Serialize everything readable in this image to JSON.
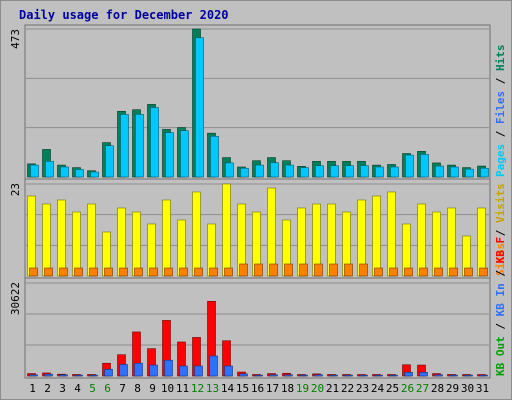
{
  "title": "Daily usage for December 2020",
  "colors": {
    "background": "#c0c0c0",
    "grid": "#8e8e8e",
    "panel_border": "#707070",
    "title": "#0000a0",
    "pages": "#00805a",
    "files": "#00c8ff",
    "hits": "#00805a",
    "visits": "#ffff00",
    "sites": "#ff8000",
    "kbin": "#3070ff",
    "kbout": "#00a000",
    "kbf": "#ff0000",
    "weekend_day": "#008000",
    "weekday_day": "#000000"
  },
  "chart_data": [
    {
      "type": "bar",
      "panel": "hits-files-pages",
      "categories": [
        "1",
        "2",
        "3",
        "4",
        "5",
        "6",
        "7",
        "8",
        "9",
        "10",
        "11",
        "12",
        "13",
        "14",
        "15",
        "16",
        "17",
        "18",
        "19",
        "20",
        "21",
        "22",
        "23",
        "24",
        "25",
        "26",
        "27",
        "28",
        "29",
        "30",
        "31"
      ],
      "weekend_days": [
        5,
        6,
        12,
        13,
        19,
        20,
        26,
        27
      ],
      "ylim": [
        0,
        473
      ],
      "max_label": "473",
      "legend": [
        {
          "label": "Hits",
          "color": "#00805a"
        },
        {
          "label": "Files",
          "color": "#3070ff"
        },
        {
          "label": "Pages",
          "color": "#00c8ff"
        }
      ],
      "legend_separator": " / ",
      "series": [
        {
          "name": "Hits",
          "values": [
            42,
            88,
            38,
            30,
            20,
            110,
            210,
            215,
            232,
            152,
            158,
            473,
            140,
            62,
            32,
            52,
            62,
            52,
            34,
            50,
            50,
            50,
            50,
            38,
            40,
            75,
            82,
            45,
            38,
            30,
            35
          ]
        },
        {
          "name": "Pages",
          "values": [
            38,
            50,
            32,
            24,
            16,
            100,
            200,
            200,
            222,
            142,
            148,
            445,
            130,
            45,
            28,
            38,
            46,
            38,
            30,
            36,
            36,
            36,
            36,
            32,
            32,
            70,
            72,
            35,
            32,
            25,
            28
          ]
        }
      ]
    },
    {
      "type": "bar",
      "panel": "visits-sites",
      "categories": [
        "1",
        "2",
        "3",
        "4",
        "5",
        "6",
        "7",
        "8",
        "9",
        "10",
        "11",
        "12",
        "13",
        "14",
        "15",
        "16",
        "17",
        "18",
        "19",
        "20",
        "21",
        "22",
        "23",
        "24",
        "25",
        "26",
        "27",
        "28",
        "29",
        "30",
        "31"
      ],
      "ylim": [
        0,
        23
      ],
      "max_label": "23",
      "legend": [
        {
          "label": "Visits",
          "color": "#c8a000"
        },
        {
          "label": "Sites",
          "color": "#ff8000"
        }
      ],
      "legend_separator": " / ",
      "series": [
        {
          "name": "Visits",
          "values": [
            20,
            18,
            19,
            16,
            18,
            11,
            17,
            16,
            13,
            19,
            14,
            21,
            13,
            23,
            18,
            16,
            22,
            14,
            17,
            18,
            18,
            16,
            19,
            20,
            21,
            13,
            18,
            16,
            17,
            10,
            17
          ]
        },
        {
          "name": "Sites",
          "values": [
            2,
            2,
            2,
            2,
            2,
            2,
            2,
            2,
            2,
            2,
            2,
            2,
            2,
            2,
            3,
            3,
            3,
            3,
            3,
            3,
            3,
            3,
            3,
            2,
            2,
            2,
            2,
            2,
            2,
            2,
            2
          ]
        }
      ]
    },
    {
      "type": "bar",
      "panel": "traffic",
      "categories": [
        "1",
        "2",
        "3",
        "4",
        "5",
        "6",
        "7",
        "8",
        "9",
        "10",
        "11",
        "12",
        "13",
        "14",
        "15",
        "16",
        "17",
        "18",
        "19",
        "20",
        "21",
        "22",
        "23",
        "24",
        "25",
        "26",
        "27",
        "28",
        "29",
        "30",
        "31"
      ],
      "ylim": [
        0,
        30622
      ],
      "max_label": "30622",
      "legend": [
        {
          "label": "KB F",
          "color": "#ff0000"
        },
        {
          "label": "KB In",
          "color": "#3070ff"
        },
        {
          "label": "KB Out",
          "color": "#00a000"
        }
      ],
      "legend_separator": " / ",
      "series": [
        {
          "name": "KB F",
          "values": [
            800,
            1000,
            600,
            500,
            500,
            4200,
            7000,
            14500,
            9000,
            18300,
            11200,
            12700,
            24600,
            11600,
            1300,
            500,
            800,
            900,
            500,
            700,
            500,
            500,
            500,
            500,
            500,
            3700,
            3600,
            800,
            500,
            500,
            500
          ]
        },
        {
          "name": "KB In",
          "values": [
            400,
            600,
            400,
            300,
            300,
            2200,
            3800,
            4200,
            3600,
            5200,
            3300,
            3300,
            6600,
            3300,
            700,
            300,
            400,
            400,
            300,
            400,
            300,
            300,
            300,
            300,
            300,
            1200,
            1200,
            400,
            300,
            300,
            300
          ]
        }
      ]
    }
  ]
}
